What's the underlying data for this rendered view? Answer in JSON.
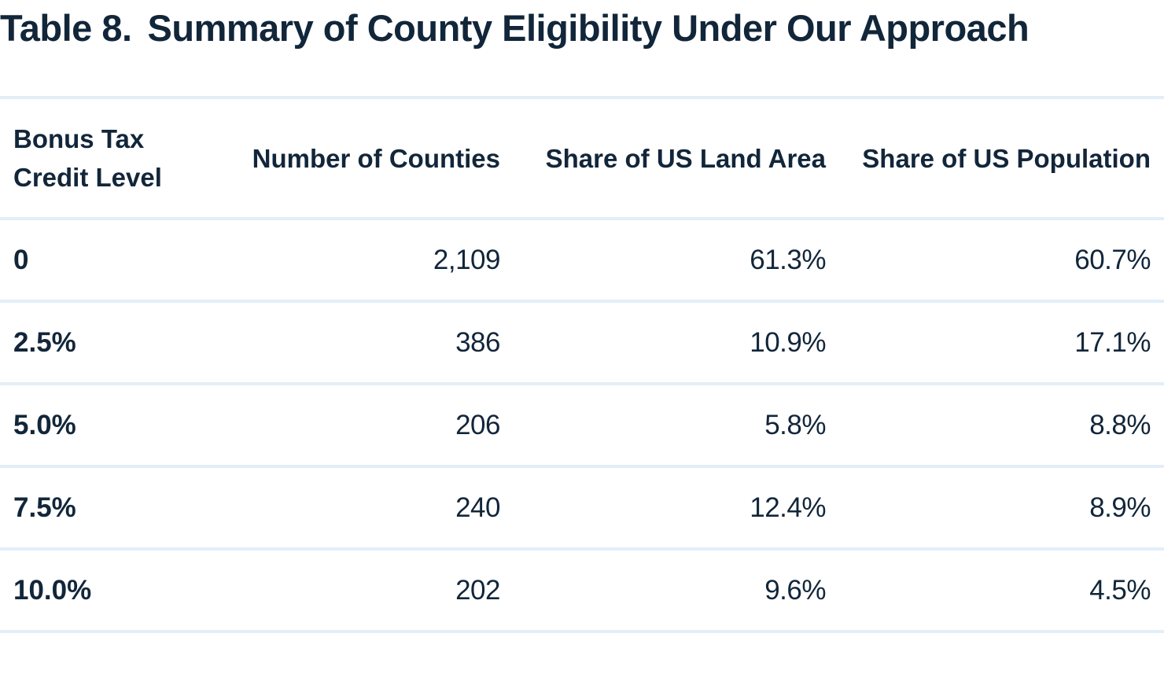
{
  "title": {
    "label": "Table 8.",
    "text": "Summary of County Eligibility Under Our Approach"
  },
  "table": {
    "headers": [
      "Bonus Tax\nCredit Level",
      "Number of Counties",
      "Share of US Land Area",
      "Share of US Population"
    ],
    "rows": [
      [
        "0",
        "2,109",
        "61.3%",
        "60.7%"
      ],
      [
        "2.5%",
        "386",
        "10.9%",
        "17.1%"
      ],
      [
        "5.0%",
        "206",
        "5.8%",
        "8.8%"
      ],
      [
        "7.5%",
        "240",
        "12.4%",
        "8.9%"
      ],
      [
        "10.0%",
        "202",
        "9.6%",
        "4.5%"
      ]
    ]
  },
  "colors": {
    "text": "#12263a",
    "rule": "#e3eef8"
  }
}
